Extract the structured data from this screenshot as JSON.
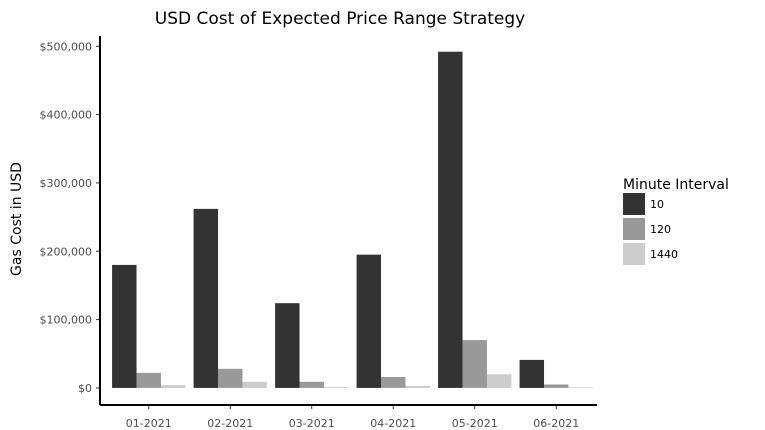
{
  "chart_data": {
    "type": "bar",
    "title": "USD Cost of Expected Price Range Strategy",
    "xlabel": "",
    "ylabel": "Gas Cost in USD",
    "categories": [
      "01-2021",
      "02-2021",
      "03-2021",
      "04-2021",
      "05-2021",
      "06-2021"
    ],
    "series": [
      {
        "name": "10",
        "color": "#333333",
        "values": [
          180000,
          262000,
          124000,
          195000,
          492000,
          41000
        ]
      },
      {
        "name": "120",
        "color": "#999999",
        "values": [
          22000,
          28000,
          9000,
          16000,
          70000,
          5000
        ]
      },
      {
        "name": "1440",
        "color": "#cccccc",
        "values": [
          4000,
          9000,
          1500,
          3000,
          20000,
          1000
        ]
      }
    ],
    "ylim": [
      -25000,
      515000
    ],
    "yticks": [
      0,
      100000,
      200000,
      300000,
      400000,
      500000
    ],
    "ytick_labels": [
      "$0",
      "$100,000",
      "$200,000",
      "$300,000",
      "$400,000",
      "$500,000"
    ],
    "legend": {
      "title": "Minute Interval",
      "placement": "right"
    },
    "grid": false
  }
}
